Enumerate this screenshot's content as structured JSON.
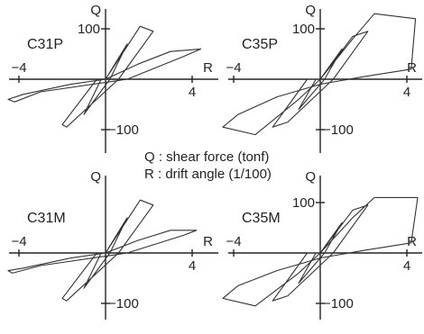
{
  "legend": {
    "q_line": "Q : shear force (tonf)",
    "r_line": "R : drift angle (1/100)"
  },
  "chart_data": [
    {
      "type": "line",
      "specimen": "C31P",
      "xlabel": "R",
      "ylabel": "Q",
      "xlim": [
        -5,
        5.5
      ],
      "ylim": [
        -150,
        150
      ],
      "xticks": [
        -4,
        4
      ],
      "yticks": [
        100,
        -100
      ],
      "series": [
        {
          "x": [
            0,
            1,
            0.2,
            -1,
            -0.2,
            0,
            1.6,
            2.2,
            0.6,
            -1.8,
            -2,
            -0.4,
            0,
            1.5,
            3,
            4.4,
            3.6,
            1,
            -3,
            -4.2,
            -4.5,
            -3.8,
            -1.6,
            0
          ],
          "y": [
            0,
            70,
            0,
            -70,
            0,
            0,
            105,
            95,
            0,
            -95,
            -90,
            0,
            0,
            30,
            55,
            60,
            45,
            0,
            -25,
            -45,
            -40,
            -30,
            -10,
            0
          ]
        }
      ]
    },
    {
      "type": "line",
      "specimen": "C35P",
      "xlabel": "R",
      "ylabel": "Q",
      "xlim": [
        -5,
        5.5
      ],
      "ylim": [
        -150,
        150
      ],
      "xticks": [
        -4,
        4
      ],
      "yticks": [
        100,
        -100
      ],
      "series": [
        {
          "x": [
            0,
            1,
            0.2,
            -1,
            -0.2,
            0,
            1.5,
            2.2,
            0.6,
            -1.5,
            -2.2,
            -0.6,
            0,
            1.5,
            2.5,
            4.4,
            4.2,
            2,
            0,
            -2,
            -3.8,
            -4.5,
            -3,
            -1,
            0
          ],
          "y": [
            0,
            60,
            0,
            -60,
            0,
            0,
            85,
            95,
            0,
            -85,
            -95,
            0,
            0,
            80,
            130,
            120,
            20,
            5,
            -10,
            -35,
            -70,
            -95,
            -110,
            -40,
            0
          ]
        }
      ]
    },
    {
      "type": "line",
      "specimen": "C31M",
      "xlabel": "R",
      "ylabel": "Q",
      "xlim": [
        -5,
        5.5
      ],
      "ylim": [
        -150,
        150
      ],
      "xticks": [
        -4,
        4
      ],
      "yticks": [
        -100
      ],
      "series": [
        {
          "x": [
            0,
            1,
            0.2,
            -1,
            -0.2,
            0,
            1.6,
            2.2,
            0.6,
            -1.8,
            -2,
            -0.4,
            0,
            1.5,
            3,
            4.2,
            3.6,
            1,
            -3,
            -4.3,
            -4.5,
            -3.8,
            -1.6,
            0
          ],
          "y": [
            0,
            70,
            0,
            -70,
            0,
            0,
            105,
            95,
            0,
            -95,
            -90,
            0,
            0,
            25,
            45,
            45,
            35,
            0,
            -25,
            -40,
            -35,
            -30,
            -10,
            0
          ]
        }
      ]
    },
    {
      "type": "line",
      "specimen": "C35M",
      "xlabel": "R",
      "ylabel": "Q",
      "xlim": [
        -5,
        5.5
      ],
      "ylim": [
        -150,
        150
      ],
      "xticks": [
        -4,
        4
      ],
      "yticks": [
        100,
        -100
      ],
      "series": [
        {
          "x": [
            0,
            1,
            0.2,
            -1,
            -0.2,
            0,
            1.5,
            2.2,
            0.6,
            -1.5,
            -2.2,
            -0.6,
            0,
            1.5,
            2.5,
            4.5,
            4.2,
            2,
            0,
            -2,
            -3.8,
            -4.5,
            -3,
            -1,
            0
          ],
          "y": [
            0,
            60,
            0,
            -60,
            0,
            0,
            85,
            95,
            0,
            -85,
            -95,
            0,
            0,
            70,
            110,
            110,
            20,
            5,
            -10,
            -35,
            -65,
            -90,
            -105,
            -40,
            0
          ]
        }
      ]
    }
  ]
}
